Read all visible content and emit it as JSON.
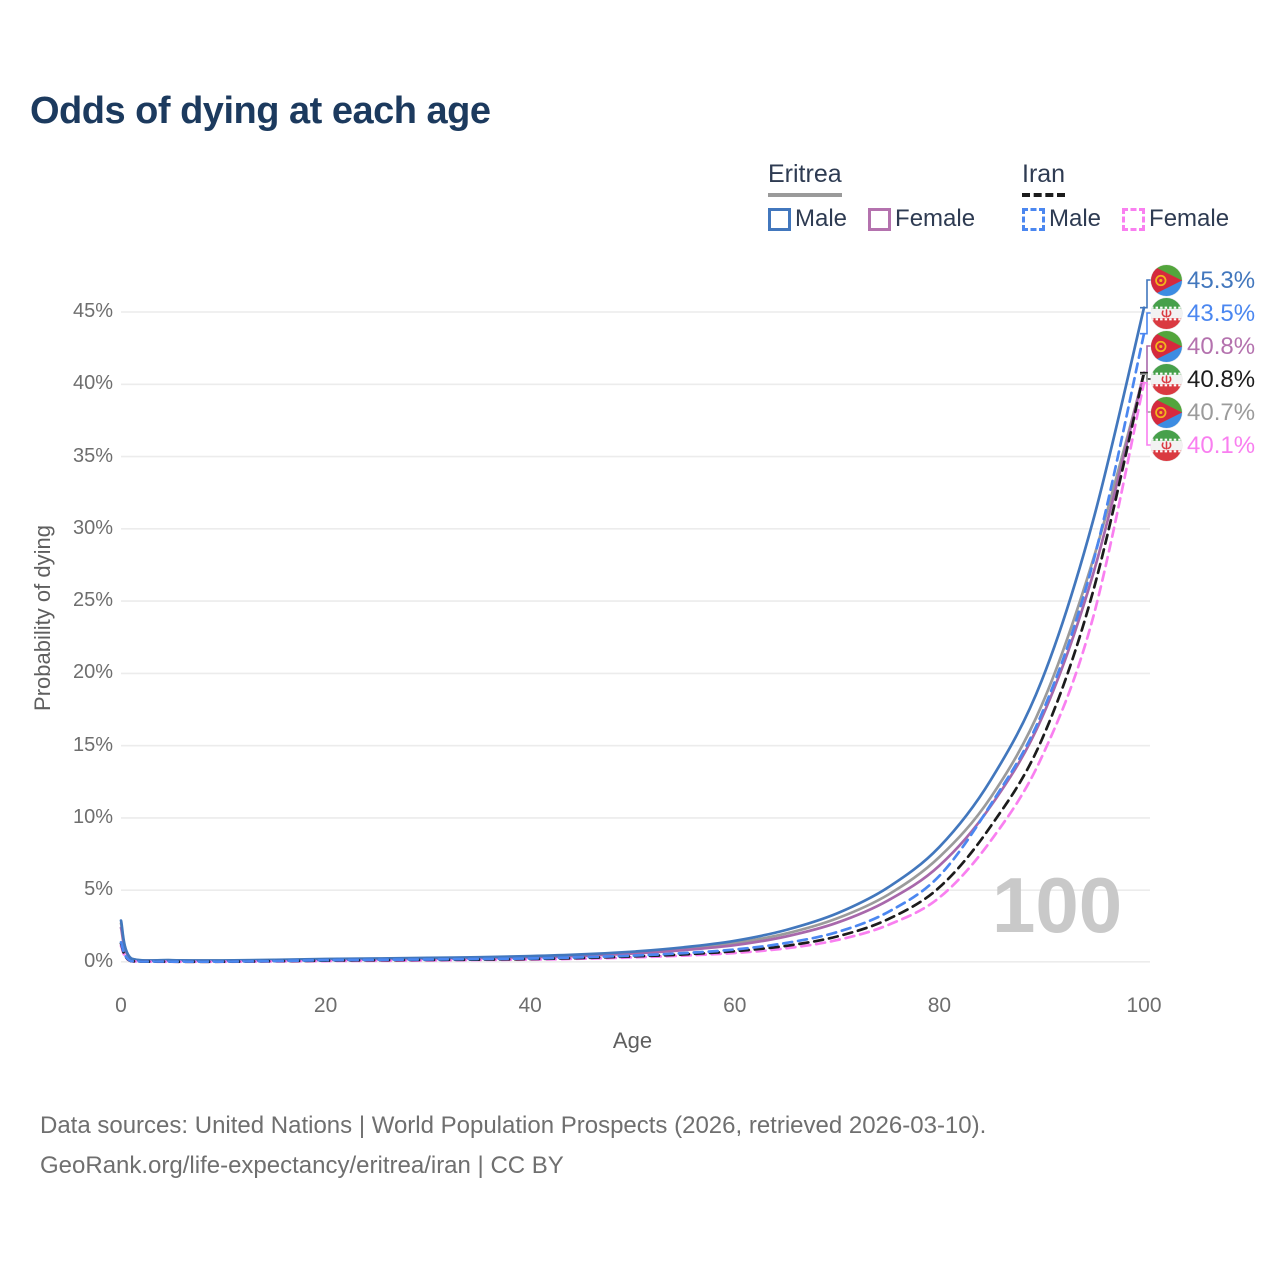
{
  "title": "Odds of dying at each age",
  "watermark": "100",
  "footer": {
    "line1": "Data sources: United Nations | World Population Prospects (2026, retrieved 2026-03-10).",
    "line2": "GeoRank.org/life-expectancy/eritrea/iran | CC BY"
  },
  "colors": {
    "title_text": "#1c3a5e",
    "legend_text": "#2e3b52",
    "grid_line": "#ececec",
    "tick_text": "#6e6e6e",
    "watermark_text": "#c9c9c9"
  },
  "legend": {
    "groups": [
      {
        "name": "Eritrea",
        "line_style": "solid",
        "underline_color": "#9a9a9a",
        "items": [
          {
            "label": "Male",
            "color": "#4277bd",
            "dashed": false
          },
          {
            "label": "Female",
            "color": "#b472ae",
            "dashed": false
          }
        ]
      },
      {
        "name": "Iran",
        "line_style": "dashed",
        "underline_color": "#1c1c1c",
        "items": [
          {
            "label": "Male",
            "color": "#4b87f0",
            "dashed": true
          },
          {
            "label": "Female",
            "color": "#f97ff0",
            "dashed": true
          }
        ]
      }
    ]
  },
  "chart_data": {
    "type": "line",
    "title": "Odds of dying at each age",
    "xlabel": "Age",
    "ylabel": "Probability of dying",
    "xlim": [
      0,
      100
    ],
    "ylim": [
      0,
      45
    ],
    "grid": "horizontal",
    "x_ticks": [
      0,
      20,
      40,
      60,
      80,
      100
    ],
    "y_ticks": [
      0,
      5,
      10,
      15,
      20,
      25,
      30,
      35,
      40,
      45
    ],
    "y_tick_suffix": "%",
    "legend_position": "top-right",
    "ages": [
      0,
      1,
      5,
      10,
      15,
      20,
      25,
      30,
      35,
      40,
      45,
      50,
      55,
      60,
      65,
      70,
      75,
      80,
      85,
      90,
      95,
      100
    ],
    "series": [
      {
        "name": "Eritrea Male",
        "country": "Eritrea",
        "sex": "Male",
        "flag": "eritrea",
        "color": "#4277bd",
        "dashed": false,
        "end_label": "45.3%",
        "end_label_color": "#4277bd",
        "values": [
          2.9,
          0.28,
          0.16,
          0.14,
          0.18,
          0.24,
          0.28,
          0.32,
          0.37,
          0.44,
          0.56,
          0.75,
          1.05,
          1.5,
          2.25,
          3.4,
          5.2,
          8.0,
          12.6,
          19.5,
          30.5,
          45.3
        ]
      },
      {
        "name": "Iran Male",
        "country": "Iran",
        "sex": "Male",
        "flag": "iran",
        "color": "#4b87f0",
        "dashed": true,
        "end_label": "43.5%",
        "end_label_color": "#4b87f0",
        "values": [
          1.4,
          0.1,
          0.06,
          0.06,
          0.1,
          0.16,
          0.19,
          0.21,
          0.24,
          0.28,
          0.36,
          0.48,
          0.65,
          0.9,
          1.35,
          2.1,
          3.5,
          6.0,
          10.9,
          17.2,
          27.6,
          43.5
        ]
      },
      {
        "name": "Eritrea Female",
        "country": "Eritrea",
        "sex": "Female",
        "flag": "eritrea",
        "color": "#a868ab",
        "dashed": false,
        "end_label": "40.8%",
        "end_label_color": "#b472ae",
        "values": [
          2.4,
          0.24,
          0.14,
          0.12,
          0.14,
          0.18,
          0.22,
          0.26,
          0.3,
          0.36,
          0.46,
          0.62,
          0.86,
          1.2,
          1.8,
          2.75,
          4.3,
          6.7,
          10.8,
          16.9,
          26.8,
          40.8
        ]
      },
      {
        "name": "Iran",
        "country": "Iran",
        "sex": "Both",
        "flag": "iran",
        "color": "#1c1c1c",
        "dashed": true,
        "end_label": "40.8%",
        "end_label_color": "#1c1c1c",
        "values": [
          1.3,
          0.09,
          0.055,
          0.055,
          0.09,
          0.13,
          0.16,
          0.18,
          0.2,
          0.24,
          0.31,
          0.42,
          0.56,
          0.78,
          1.15,
          1.8,
          3.0,
          5.2,
          9.4,
          15.4,
          25.6,
          40.8
        ]
      },
      {
        "name": "Eritrea",
        "country": "Eritrea",
        "sex": "Both",
        "flag": "eritrea",
        "color": "#9b9b9b",
        "dashed": false,
        "end_label": "40.7%",
        "end_label_color": "#9b9b9b",
        "values": [
          2.7,
          0.26,
          0.15,
          0.13,
          0.16,
          0.21,
          0.25,
          0.29,
          0.33,
          0.4,
          0.51,
          0.68,
          0.95,
          1.35,
          2.0,
          3.05,
          4.7,
          7.3,
          11.4,
          17.8,
          27.8,
          40.7
        ]
      },
      {
        "name": "Iran Female",
        "country": "Iran",
        "sex": "Female",
        "flag": "iran",
        "color": "#f97ff0",
        "dashed": true,
        "end_label": "40.1%",
        "end_label_color": "#f97ff0",
        "values": [
          1.15,
          0.08,
          0.05,
          0.05,
          0.07,
          0.1,
          0.12,
          0.14,
          0.17,
          0.2,
          0.26,
          0.35,
          0.48,
          0.66,
          0.98,
          1.55,
          2.6,
          4.5,
          8.4,
          14.2,
          23.8,
          40.1
        ]
      }
    ]
  }
}
